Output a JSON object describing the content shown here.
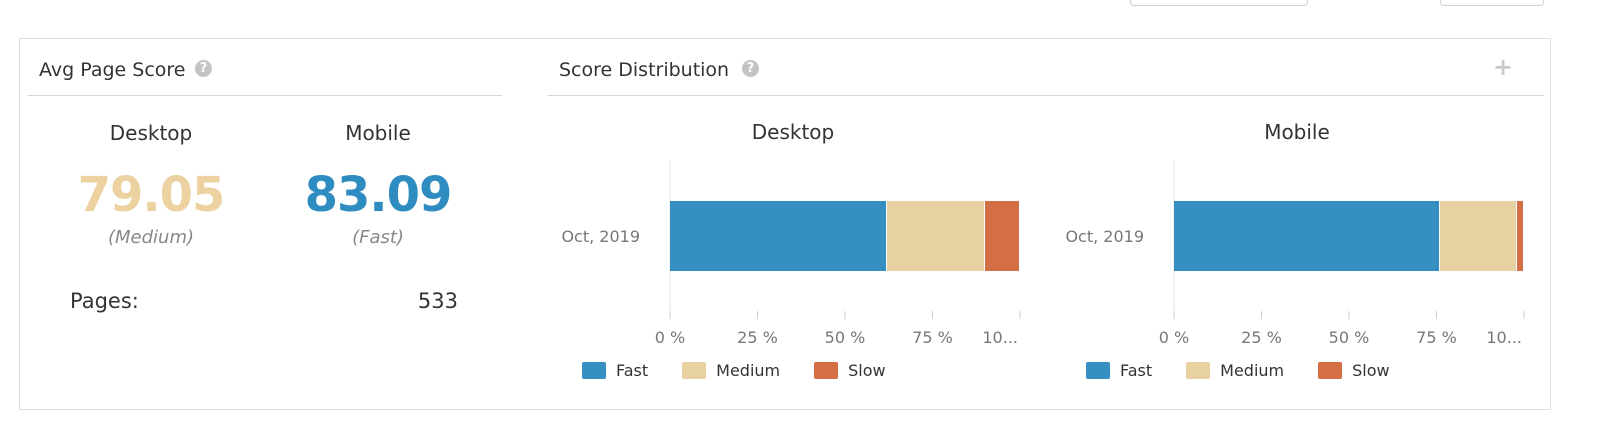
{
  "left_panel": {
    "title": "Avg Page Score",
    "desktop": {
      "label": "Desktop",
      "score": "79.05",
      "rating": "(Medium)",
      "color": "#ebd2a0"
    },
    "mobile": {
      "label": "Mobile",
      "score": "83.09",
      "rating": "(Fast)",
      "color": "#2e8cc0"
    },
    "pages_label": "Pages:",
    "pages_value": "533"
  },
  "right_panel": {
    "title": "Score Distribution"
  },
  "colors": {
    "fast": "#358fc1",
    "medium": "#e8d1a1",
    "slow": "#d46f45"
  },
  "chart_data": [
    {
      "type": "bar",
      "orientation": "horizontal-stacked",
      "title": "Desktop",
      "categories": [
        "Oct, 2019"
      ],
      "series": [
        {
          "name": "Fast",
          "values": [
            62
          ]
        },
        {
          "name": "Medium",
          "values": [
            28
          ]
        },
        {
          "name": "Slow",
          "values": [
            10
          ]
        }
      ],
      "xlim": [
        0,
        100
      ],
      "x_ticks": [
        "0 %",
        "25 %",
        "50 %",
        "75 %",
        "10..."
      ],
      "legend": "bottom"
    },
    {
      "type": "bar",
      "orientation": "horizontal-stacked",
      "title": "Mobile",
      "categories": [
        "Oct, 2019"
      ],
      "series": [
        {
          "name": "Fast",
          "values": [
            76
          ]
        },
        {
          "name": "Medium",
          "values": [
            22
          ]
        },
        {
          "name": "Slow",
          "values": [
            2
          ]
        }
      ],
      "xlim": [
        0,
        100
      ],
      "x_ticks": [
        "0 %",
        "25 %",
        "50 %",
        "75 %",
        "10..."
      ],
      "legend": "bottom"
    }
  ]
}
